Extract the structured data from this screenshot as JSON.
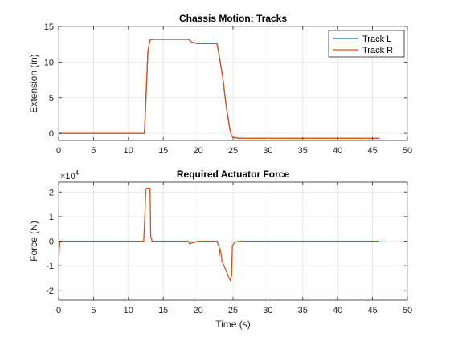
{
  "chart_data": [
    {
      "type": "line",
      "title": "Chassis Motion: Tracks",
      "xlabel": "",
      "ylabel": "Extension (in)",
      "xlim": [
        0,
        50
      ],
      "ylim": [
        -1,
        15
      ],
      "xticks": [
        0,
        5,
        10,
        15,
        20,
        25,
        30,
        35,
        40,
        45,
        50
      ],
      "yticks": [
        0,
        5,
        10,
        15
      ],
      "grid": true,
      "legend": "top-right",
      "series": [
        {
          "name": "Track L",
          "color": "#0072BD",
          "x": [
            0,
            12.3,
            12.5,
            12.8,
            13.1,
            13.5,
            18.6,
            19.1,
            19.8,
            20.5,
            22.7,
            23.0,
            23.5,
            24.0,
            24.5,
            24.8,
            25.2,
            26.0,
            46.0
          ],
          "y": [
            0,
            0,
            4.5,
            11.5,
            13.1,
            13.2,
            13.2,
            12.8,
            12.6,
            12.6,
            12.6,
            11.0,
            8.0,
            4.0,
            0.8,
            -0.4,
            -0.6,
            -0.7,
            -0.7
          ]
        },
        {
          "name": "Track R",
          "color": "#D95319",
          "x": [
            0,
            12.3,
            12.5,
            12.8,
            13.1,
            13.5,
            18.6,
            19.1,
            19.8,
            20.5,
            22.7,
            23.0,
            23.5,
            24.0,
            24.5,
            24.8,
            25.2,
            26.0,
            46.0
          ],
          "y": [
            0,
            0,
            4.5,
            11.5,
            13.1,
            13.2,
            13.2,
            12.8,
            12.6,
            12.6,
            12.6,
            11.0,
            8.0,
            4.0,
            0.8,
            -0.4,
            -0.6,
            -0.7,
            -0.7
          ]
        }
      ]
    },
    {
      "type": "line",
      "title": "Required Actuator Force",
      "xlabel": "Time (s)",
      "ylabel": "Force (N)",
      "xlim": [
        0,
        50
      ],
      "ylim": [
        -2.4,
        2.4
      ],
      "xticks": [
        0,
        5,
        10,
        15,
        20,
        25,
        30,
        35,
        40,
        45,
        50
      ],
      "yticks": [
        -2,
        -1,
        0,
        1,
        2
      ],
      "y_exponent": "4",
      "grid": true,
      "series": [
        {
          "name": "",
          "color": "#D95319",
          "x": [
            0,
            0.05,
            0.1,
            0.2,
            12.2,
            12.35,
            12.5,
            12.6,
            13.1,
            13.2,
            13.4,
            18.6,
            18.8,
            19.0,
            19.5,
            20.0,
            22.7,
            23.0,
            23.05,
            23.1,
            23.3,
            23.4,
            24.0,
            24.6,
            24.8,
            24.9,
            25.2,
            26.0,
            31.0,
            33.4,
            46.0
          ],
          "y": [
            0.4,
            -0.6,
            -0.3,
            0,
            0,
            1.0,
            2.1,
            2.15,
            2.15,
            0.2,
            0,
            0,
            -0.12,
            -0.08,
            -0.05,
            0,
            0,
            -0.25,
            -0.6,
            -0.3,
            -0.5,
            -0.8,
            -1.2,
            -1.6,
            -1.4,
            -0.2,
            -0.05,
            0,
            0,
            0,
            0
          ]
        }
      ]
    }
  ]
}
